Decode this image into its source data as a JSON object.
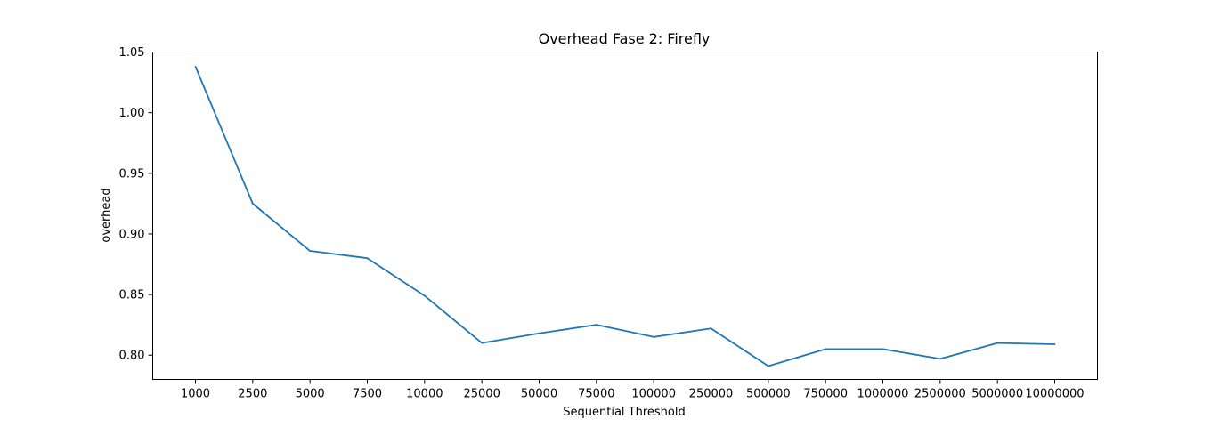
{
  "colors": {
    "series": "#1f77b4"
  },
  "chart_data": {
    "type": "line",
    "title": "Overhead Fase 2: Firefly",
    "xlabel": "Sequential Threshold",
    "ylabel": "overhead",
    "categories": [
      "1000",
      "2500",
      "5000",
      "7500",
      "10000",
      "25000",
      "50000",
      "75000",
      "100000",
      "250000",
      "500000",
      "750000",
      "1000000",
      "2500000",
      "5000000",
      "10000000"
    ],
    "series": [
      {
        "values": [
          1.038,
          0.925,
          0.886,
          0.88,
          0.849,
          0.81,
          0.818,
          0.825,
          0.815,
          0.822,
          0.791,
          0.805,
          0.805,
          0.797,
          0.81,
          0.809
        ]
      }
    ],
    "ylim": [
      0.78,
      1.05
    ],
    "yticks": [
      "0.80",
      "0.85",
      "0.90",
      "0.95",
      "1.00",
      "1.05"
    ],
    "grid": false
  }
}
